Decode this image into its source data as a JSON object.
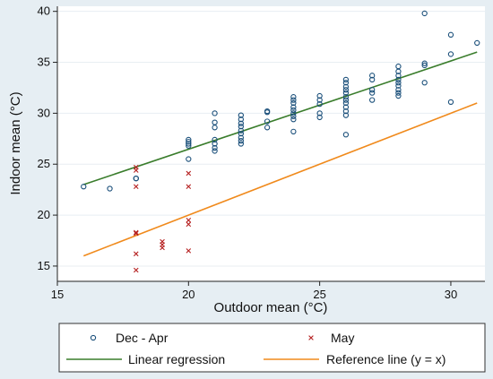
{
  "chart_data": {
    "type": "scatter",
    "xlabel": "Outdoor mean (°C)",
    "ylabel": "Indoor mean (°C)",
    "xlim": [
      15,
      31.3
    ],
    "ylim": [
      13.5,
      40.5
    ],
    "xticks": [
      15,
      20,
      25,
      30
    ],
    "yticks": [
      15,
      20,
      25,
      30,
      35,
      40
    ],
    "grid": true,
    "legend_position": "bottom",
    "series": [
      {
        "name": "Dec - Apr",
        "marker": "circle",
        "color": "#1a4f7a",
        "points": [
          [
            16,
            22.8
          ],
          [
            17,
            22.6
          ],
          [
            18,
            23.6
          ],
          [
            18,
            23.6
          ],
          [
            20,
            25.5
          ],
          [
            20,
            26.8
          ],
          [
            20,
            27.0
          ],
          [
            20,
            27.2
          ],
          [
            20,
            27.4
          ],
          [
            21,
            26.3
          ],
          [
            21,
            26.6
          ],
          [
            21,
            27.0
          ],
          [
            21,
            27.4
          ],
          [
            21,
            28.6
          ],
          [
            21,
            29.1
          ],
          [
            21,
            30.0
          ],
          [
            22,
            27.0
          ],
          [
            22,
            27.3
          ],
          [
            22,
            27.6
          ],
          [
            22,
            28.0
          ],
          [
            22,
            28.3
          ],
          [
            22,
            28.7
          ],
          [
            22,
            29.0
          ],
          [
            22,
            29.4
          ],
          [
            22,
            29.8
          ],
          [
            23,
            28.6
          ],
          [
            23,
            29.2
          ],
          [
            23,
            30.1
          ],
          [
            23,
            30.2
          ],
          [
            24,
            28.2
          ],
          [
            24,
            29.4
          ],
          [
            24,
            29.7
          ],
          [
            24,
            30.0
          ],
          [
            24,
            30.3
          ],
          [
            24,
            30.6
          ],
          [
            24,
            31.0
          ],
          [
            24,
            31.3
          ],
          [
            24,
            31.6
          ],
          [
            25,
            29.6
          ],
          [
            25,
            30.0
          ],
          [
            25,
            30.9
          ],
          [
            25,
            31.3
          ],
          [
            25,
            31.7
          ],
          [
            26,
            27.9
          ],
          [
            26,
            29.8
          ],
          [
            26,
            30.2
          ],
          [
            26,
            30.6
          ],
          [
            26,
            31.0
          ],
          [
            26,
            31.3
          ],
          [
            26,
            31.6
          ],
          [
            26,
            32.0
          ],
          [
            26,
            32.3
          ],
          [
            26,
            32.6
          ],
          [
            26,
            33.0
          ],
          [
            26,
            33.3
          ],
          [
            27,
            31.3
          ],
          [
            27,
            32.0
          ],
          [
            27,
            32.3
          ],
          [
            27,
            33.3
          ],
          [
            27,
            33.7
          ],
          [
            28,
            31.7
          ],
          [
            28,
            32.0
          ],
          [
            28,
            32.3
          ],
          [
            28,
            32.7
          ],
          [
            28,
            33.0
          ],
          [
            28,
            33.3
          ],
          [
            28,
            33.7
          ],
          [
            28,
            34.1
          ],
          [
            28,
            34.6
          ],
          [
            29,
            33.0
          ],
          [
            29,
            34.7
          ],
          [
            29,
            34.9
          ],
          [
            29,
            39.8
          ],
          [
            30,
            31.1
          ],
          [
            30,
            35.8
          ],
          [
            30,
            37.7
          ],
          [
            31,
            36.9
          ]
        ]
      },
      {
        "name": "May",
        "marker": "x",
        "color": "#b51f1f",
        "points": [
          [
            18,
            14.6
          ],
          [
            18,
            16.2
          ],
          [
            18,
            18.2
          ],
          [
            18,
            18.3
          ],
          [
            18,
            22.8
          ],
          [
            18,
            24.4
          ],
          [
            18,
            24.7
          ],
          [
            19,
            16.8
          ],
          [
            19,
            17.1
          ],
          [
            19,
            17.4
          ],
          [
            20,
            16.5
          ],
          [
            20,
            19.1
          ],
          [
            20,
            19.5
          ],
          [
            20,
            22.8
          ],
          [
            20,
            24.1
          ]
        ]
      }
    ],
    "lines": [
      {
        "name": "Linear regression",
        "color": "#3a7d2c",
        "x": [
          16,
          31
        ],
        "y": [
          23.0,
          36.0
        ]
      },
      {
        "name": "Reference line (y = x)",
        "color": "#f08a1c",
        "x": [
          16,
          31
        ],
        "y": [
          16,
          31
        ]
      }
    ]
  }
}
